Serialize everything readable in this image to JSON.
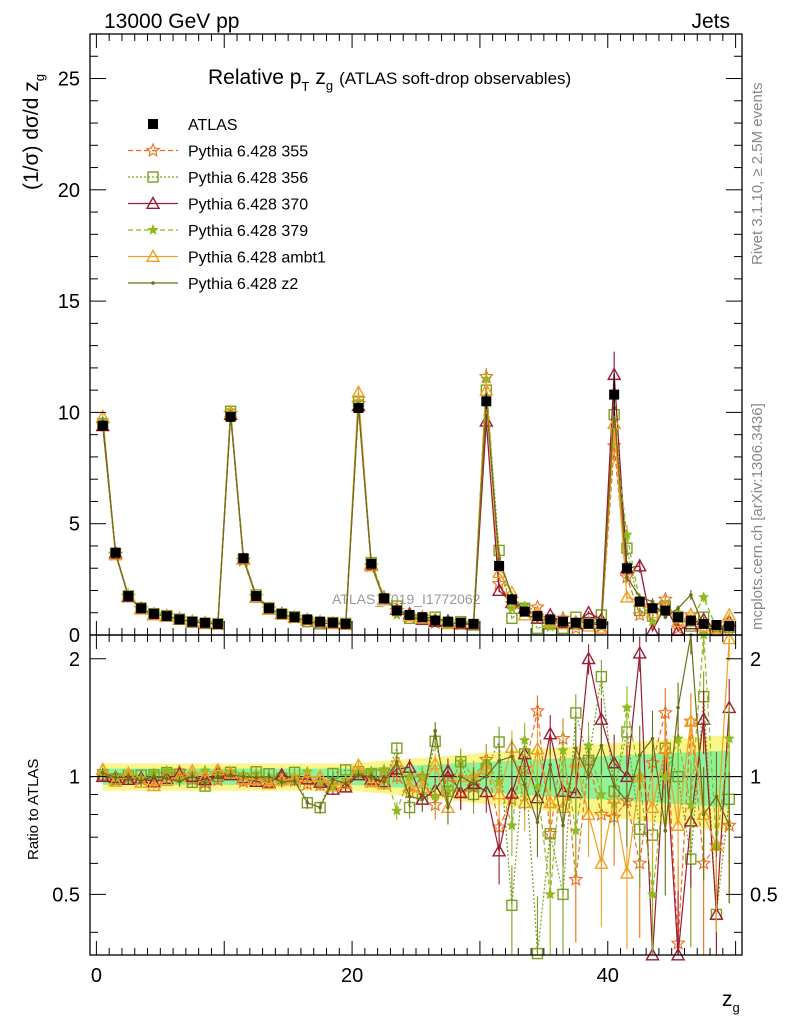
{
  "header": {
    "energy": "13000 GeV pp",
    "process": "Jets",
    "side_top": "Rivet 3.1.10, ≥ 2.5M events",
    "side_bottom": "mcplots.cern.ch [arXiv:1306.3436]",
    "watermark": "ATLAS_2019_I1772062"
  },
  "chart_data": {
    "type": "line",
    "title": "Relative pT zg (ATLAS soft-drop observables)",
    "title_main": "Relative p",
    "title_sub": "T",
    "title_z": "z",
    "title_zsub": "g",
    "title_rest": "(ATLAS soft-drop observables)",
    "ylabel": "(1/σ) dσ/d z",
    "ylabel_sub": "g",
    "ratio_ylabel": "Ratio to ATLAS",
    "xlabel": "z",
    "xlabel_sub": "g",
    "xlim": [
      -0.5,
      50.5
    ],
    "ylim": [
      0,
      27
    ],
    "ratio_ylim": [
      0.35,
      2.3
    ],
    "x_ticks": [
      "0",
      "20",
      "40"
    ],
    "y_ticks": [
      "0",
      "5",
      "10",
      "15",
      "20",
      "25"
    ],
    "ratio_ticks": [
      "0.5",
      "1",
      "2"
    ],
    "legend_position": "top-left",
    "x": [
      0.5,
      1.5,
      2.5,
      3.5,
      4.5,
      5.5,
      6.5,
      7.5,
      8.5,
      9.5,
      10.5,
      11.5,
      12.5,
      13.5,
      14.5,
      15.5,
      16.5,
      17.5,
      18.5,
      19.5,
      20.5,
      21.5,
      22.5,
      23.5,
      24.5,
      25.5,
      26.5,
      27.5,
      28.5,
      29.5,
      30.5,
      31.5,
      32.5,
      33.5,
      34.5,
      35.5,
      36.5,
      37.5,
      38.5,
      39.5,
      40.5,
      41.5,
      42.5,
      43.5,
      44.5,
      45.5,
      46.5,
      47.5,
      48.5,
      49.5
    ],
    "series": [
      {
        "name": "ATLAS",
        "color": "#000000",
        "marker": "square-filled",
        "values": [
          9.4,
          3.7,
          1.75,
          1.2,
          0.95,
          0.85,
          0.7,
          0.6,
          0.55,
          0.5,
          9.8,
          3.45,
          1.75,
          1.2,
          0.95,
          0.8,
          0.7,
          0.6,
          0.55,
          0.5,
          10.2,
          3.2,
          1.65,
          1.1,
          0.9,
          0.8,
          0.65,
          0.6,
          0.55,
          0.5,
          10.5,
          3.1,
          1.6,
          1.05,
          0.85,
          0.7,
          0.6,
          0.55,
          0.5,
          0.5,
          10.8,
          3.0,
          1.5,
          1.2,
          1.1,
          0.8,
          0.65,
          0.5,
          0.45,
          0.4
        ]
      },
      {
        "name": "Pythia 6.428 355",
        "color": "#f26b1d",
        "marker": "star",
        "values": [
          9.45,
          3.62,
          1.74,
          1.18,
          0.93,
          0.86,
          0.72,
          0.59,
          0.53,
          0.49,
          9.95,
          3.35,
          1.72,
          1.17,
          0.94,
          0.78,
          0.67,
          0.57,
          0.53,
          0.48,
          10.4,
          3.1,
          1.7,
          1.1,
          0.82,
          0.8,
          0.55,
          0.6,
          0.5,
          0.47,
          11.6,
          2.3,
          1.4,
          1.1,
          1.25,
          0.5,
          0.75,
          0.3,
          0.55,
          0.4,
          8.5,
          2.6,
          0.9,
          1.3,
          1.6,
          0.3,
          0.9,
          0.3,
          0.3,
          0.3
        ]
      },
      {
        "name": "Pythia 6.428 356",
        "color": "#7aa022",
        "marker": "square-open",
        "values": [
          9.5,
          3.65,
          1.76,
          1.21,
          0.96,
          0.87,
          0.71,
          0.58,
          0.52,
          0.5,
          10.05,
          3.4,
          1.8,
          1.22,
          0.94,
          0.82,
          0.6,
          0.5,
          0.56,
          0.52,
          10.5,
          3.25,
          1.6,
          1.3,
          0.75,
          0.7,
          0.8,
          0.55,
          0.6,
          0.45,
          11.0,
          3.8,
          0.75,
          1.2,
          0.3,
          0.5,
          0.3,
          0.8,
          0.55,
          0.9,
          9.9,
          3.9,
          1.1,
          0.85,
          1.3,
          0.8,
          0.4,
          0.8,
          0.2,
          0.35
        ]
      },
      {
        "name": "Pythia 6.428 370",
        "color": "#9b1b30",
        "marker": "triangle-open",
        "values": [
          9.4,
          3.68,
          1.72,
          1.19,
          0.92,
          0.84,
          0.71,
          0.6,
          0.54,
          0.51,
          9.9,
          3.42,
          1.7,
          1.16,
          0.96,
          0.79,
          0.69,
          0.58,
          0.51,
          0.47,
          10.3,
          3.15,
          1.6,
          1.15,
          0.95,
          0.7,
          0.6,
          0.62,
          0.5,
          0.48,
          9.6,
          2.0,
          1.45,
          1.2,
          0.75,
          0.9,
          0.55,
          0.5,
          1.0,
          0.7,
          11.7,
          3.0,
          3.1,
          0.2,
          1.3,
          0.2,
          0.5,
          0.7,
          0.2,
          0.6
        ]
      },
      {
        "name": "Pythia 6.428 379",
        "color": "#8fba20",
        "marker": "star-small",
        "values": [
          9.6,
          3.7,
          1.8,
          1.19,
          0.97,
          0.88,
          0.69,
          0.61,
          0.57,
          0.51,
          10.1,
          3.5,
          1.78,
          1.19,
          0.92,
          0.8,
          0.72,
          0.58,
          0.52,
          0.49,
          10.5,
          3.3,
          1.72,
          0.9,
          0.9,
          0.8,
          0.58,
          0.55,
          0.6,
          0.5,
          11.5,
          3.0,
          1.2,
          1.3,
          0.8,
          0.35,
          0.7,
          0.4,
          0.6,
          0.45,
          9.2,
          4.5,
          1.5,
          0.6,
          1.1,
          1.0,
          0.55,
          1.7,
          0.3,
          0.5
        ]
      },
      {
        "name": "Pythia 6.428 ambt1",
        "color": "#f0a020",
        "marker": "triangle-open",
        "values": [
          9.8,
          3.6,
          1.78,
          1.16,
          0.9,
          0.83,
          0.7,
          0.62,
          0.55,
          0.52,
          10.0,
          3.4,
          1.72,
          1.15,
          0.93,
          0.79,
          0.7,
          0.6,
          0.52,
          0.48,
          10.9,
          3.1,
          1.58,
          1.2,
          0.85,
          0.75,
          0.7,
          0.5,
          0.55,
          0.5,
          11.0,
          2.8,
          1.9,
          0.9,
          1.0,
          0.6,
          0.5,
          0.6,
          0.4,
          0.3,
          9.5,
          1.7,
          1.5,
          1.0,
          1.3,
          0.6,
          0.9,
          0.4,
          0.3,
          0.9
        ]
      },
      {
        "name": "Pythia 6.428 z2",
        "color": "#6e6e1a",
        "marker": "dot",
        "values": [
          9.6,
          3.68,
          1.74,
          1.17,
          0.95,
          0.84,
          0.68,
          0.6,
          0.53,
          0.5,
          9.9,
          3.45,
          1.74,
          1.2,
          0.92,
          0.78,
          0.6,
          0.5,
          0.54,
          0.48,
          10.3,
          3.2,
          1.6,
          1.2,
          0.8,
          0.7,
          0.85,
          0.5,
          0.55,
          0.48,
          10.5,
          3.4,
          1.8,
          1.0,
          0.65,
          0.75,
          0.45,
          0.65,
          0.5,
          0.6,
          10.2,
          2.6,
          1.7,
          1.5,
          0.8,
          1.2,
          1.8,
          0.4,
          0.4,
          0.3
        ]
      }
    ]
  }
}
